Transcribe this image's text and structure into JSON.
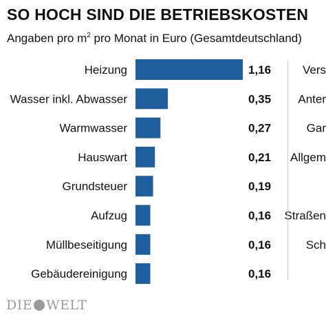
{
  "header": {
    "title": "SO HOCH SIND DIE BETRIEBSKOSTEN",
    "subtitle_before": "Angaben pro m",
    "subtitle_sup": "2",
    "subtitle_after": " pro Monat in Euro (Gesamtdeutschland)"
  },
  "chart_data": {
    "type": "bar",
    "orientation": "horizontal",
    "categories": [
      "Heizung",
      "Wasser inkl. Abwasser",
      "Warmwasser",
      "Hauswart",
      "Grundsteuer",
      "Aufzug",
      "Müllbeseitigung",
      "Gebäudereinigung"
    ],
    "values": [
      1.16,
      0.35,
      0.27,
      0.21,
      0.19,
      0.16,
      0.16,
      0.16
    ],
    "value_labels": [
      "1,16",
      "0,35",
      "0,27",
      "0,21",
      "0,19",
      "0,16",
      "0,16",
      "0,16"
    ],
    "title": "SO HOCH SIND DIE BETRIEBSKOSTEN",
    "subtitle": "Angaben pro m2 pro Monat in Euro (Gesamtdeutschland)",
    "xlim": [
      0,
      1.16
    ],
    "grid": false,
    "bar_color": "#1f5f9e"
  },
  "right_column": {
    "labels": [
      "Vers",
      "Anter",
      "Gar",
      "Allgem",
      "",
      "Straßen",
      "Sch",
      ""
    ]
  },
  "logo": {
    "left": "DIE",
    "right": "WELT"
  }
}
